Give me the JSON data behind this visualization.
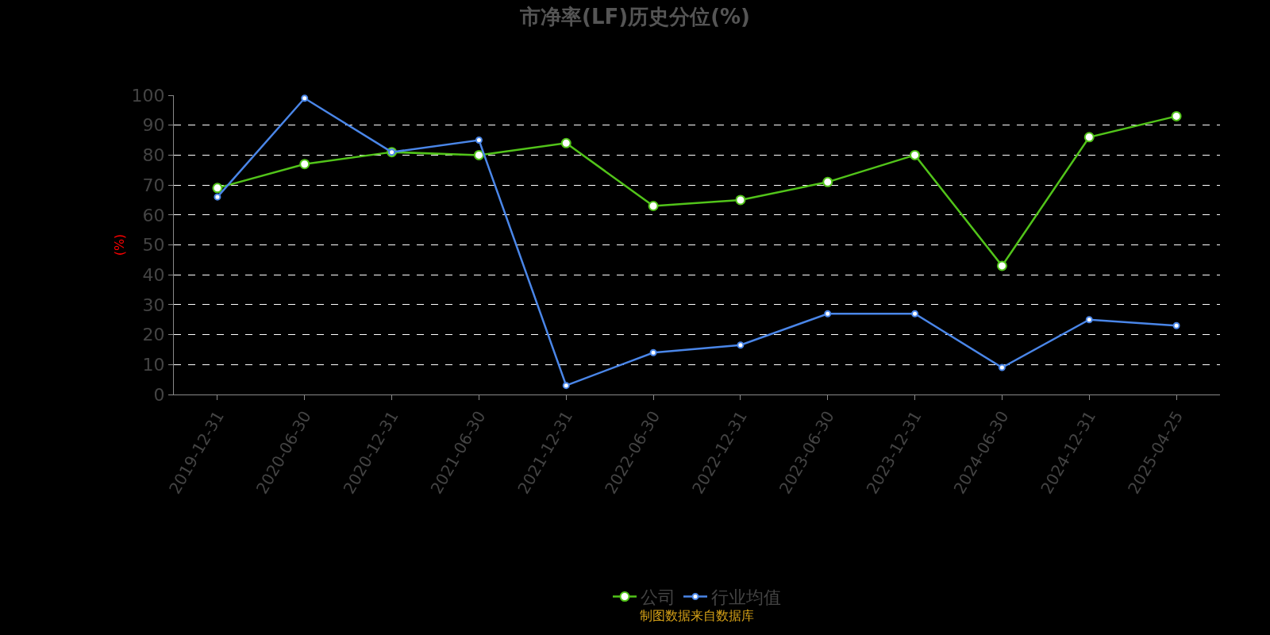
{
  "chart_data": {
    "type": "line",
    "title": "市净率(LF)历史分位(%)",
    "ylabel": "(%)",
    "categories": [
      "2019-12-31",
      "2020-06-30",
      "2020-12-31",
      "2021-06-30",
      "2021-12-31",
      "2022-06-30",
      "2022-12-31",
      "2023-06-30",
      "2023-12-31",
      "2024-06-30",
      "2024-12-31",
      "2025-04-25"
    ],
    "series": [
      {
        "name": "公司",
        "color": "#52c41a",
        "values": [
          69,
          77,
          81,
          80,
          84,
          63,
          65,
          71,
          80,
          43,
          86,
          93
        ]
      },
      {
        "name": "行业均值",
        "color": "#4a86e8",
        "values": [
          66,
          99,
          81,
          85,
          3,
          14,
          16.5,
          27,
          27,
          9,
          25,
          23
        ]
      }
    ],
    "ylim": [
      0,
      100
    ],
    "yticks": [
      0,
      10,
      20,
      30,
      40,
      50,
      60,
      70,
      80,
      90,
      100
    ],
    "grid": "y",
    "legend": "bottom",
    "marker": "circle",
    "line_style": "solid",
    "annotations": [
      "制图数据来自数据库"
    ]
  }
}
